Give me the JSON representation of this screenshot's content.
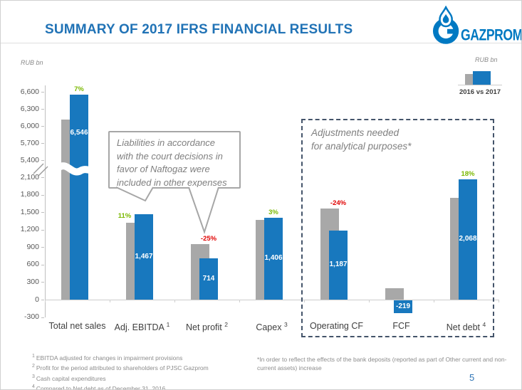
{
  "slide": {
    "title": "SUMMARY OF 2017 IFRS FINANCIAL RESULTS",
    "logo_text": "GAZPROM",
    "page_number": "5"
  },
  "legend": {
    "unit_label": "RUB bn",
    "caption": "2016 vs 2017"
  },
  "chart_data": {
    "type": "bar",
    "unit_label": "RUB bn",
    "series_names": [
      "2016",
      "2017"
    ],
    "axis_break": {
      "between": [
        2100,
        5400
      ]
    },
    "y_ticks": [
      -300,
      0,
      300,
      600,
      900,
      1200,
      1500,
      1800,
      2100,
      5400,
      5700,
      6000,
      6300,
      6600
    ],
    "ylim": [
      -300,
      6600
    ],
    "grid": false,
    "note": "2016 (gray) values estimated from bar heights; 2017 (blue) values labeled on chart",
    "categories": [
      {
        "label": "Total net sales",
        "sup": "",
        "v2016": 6111,
        "v2017": 6546,
        "value_label": "6,546",
        "pct": "7%",
        "pct_color": "green",
        "value_label_y": 180
      },
      {
        "label": "Adj. EBITDA",
        "sup": "1",
        "v2016": 1322,
        "v2017": 1467,
        "value_label": "1,467",
        "pct": "11%",
        "pct_color": "green",
        "pct_offset": [
          -27,
          10
        ]
      },
      {
        "label": "Net profit",
        "sup": "2",
        "v2016": 952,
        "v2017": 714,
        "value_label": "714",
        "pct": "-25%",
        "pct_color": "red"
      },
      {
        "label": "Capex",
        "sup": "3",
        "v2016": 1365,
        "v2017": 1406,
        "value_label": "1,406",
        "pct": "3%",
        "pct_color": "green"
      },
      {
        "label": "Operating CF",
        "sup": "",
        "v2016": 1562,
        "v2017": 1187,
        "value_label": "1,187",
        "pct": "-24%",
        "pct_color": "red"
      },
      {
        "label": "FCF",
        "sup": "",
        "v2016": 200,
        "v2017": -219,
        "value_label": "-219",
        "pct": null
      },
      {
        "label": "Net debt",
        "sup": "4",
        "v2016": 1752,
        "v2017": 2068,
        "value_label": "2,068",
        "pct": "18%",
        "pct_color": "green"
      }
    ],
    "colors": {
      "bar_2016": "#A8A8A8",
      "bar_2017": "#1878BE",
      "positive_pct": "#7AB800",
      "negative_pct": "#E00000",
      "title": "#2173B6",
      "logo": "#0079C2",
      "dashed_box_border": "#44546A"
    }
  },
  "annotations": {
    "callout": {
      "text": "Liabilities in accordance with the court decisions in favor of Naftogaz were included in other expenses"
    },
    "adjustments_box": {
      "line1": "Adjustments needed",
      "line2": "for analytical purposes*"
    }
  },
  "footnotes": {
    "left": [
      {
        "sup": "1",
        "text": "EBITDA adjusted for changes in impairment provisions"
      },
      {
        "sup": "2",
        "text": "Profit for the period attributed to shareholders of PJSC Gazprom"
      },
      {
        "sup": "3",
        "text": "Cash capital expenditures"
      },
      {
        "sup": "4",
        "text": "Compared to Net debt as of December 31, 2016"
      }
    ],
    "right": "*In order to reflect the effects of the bank deposits (reported as part of Other current and non-current assets) increase"
  }
}
